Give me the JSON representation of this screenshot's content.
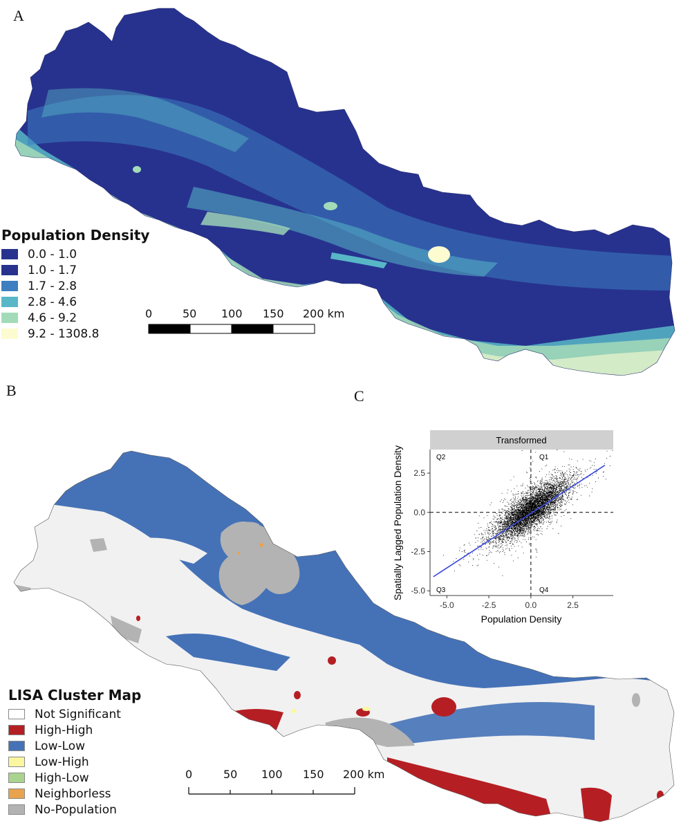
{
  "panels": {
    "a": {
      "letter": "A",
      "legend_title": "Population Density",
      "legend": [
        {
          "label": "0.0 - 1.0",
          "color": "#27328f"
        },
        {
          "label": "1.0 - 1.7",
          "color": "#27328f"
        },
        {
          "label": "1.7 - 2.8",
          "color": "#3d7fc1"
        },
        {
          "label": "2.8 - 4.6",
          "color": "#58b7c6"
        },
        {
          "label": "4.6 - 9.2",
          "color": "#a3dbb8"
        },
        {
          "label": "9.2 - 1308.8",
          "color": "#fdfcd0"
        }
      ],
      "scale_ticks": [
        "0",
        "50",
        "100",
        "150",
        "200 km"
      ]
    },
    "b": {
      "letter": "B",
      "legend_title": "LISA Cluster Map",
      "legend": [
        {
          "label": "Not Significant",
          "color": "#ffffff"
        },
        {
          "label": "High-High",
          "color": "#b51f24"
        },
        {
          "label": "Low-Low",
          "color": "#4572b7"
        },
        {
          "label": "Low-High",
          "color": "#fbf7a1"
        },
        {
          "label": "High-Low",
          "color": "#a9d48f"
        },
        {
          "label": "Neighborless",
          "color": "#e8a34f"
        },
        {
          "label": "No-Population",
          "color": "#b3b3b3"
        }
      ],
      "scale_ticks": [
        "0",
        "50",
        "100",
        "150",
        "200 km"
      ]
    },
    "c": {
      "letter": "C",
      "facet_label": "Transformed",
      "quadrants": [
        "Q1",
        "Q2",
        "Q3",
        "Q4"
      ]
    }
  },
  "chart_data": {
    "type": "scatter",
    "title": "",
    "facet": "Transformed",
    "xlabel": "Population Density",
    "ylabel": "Spatially Lagged Population Density",
    "xlim": [
      -6.0,
      4.9
    ],
    "ylim": [
      -5.3,
      4.0
    ],
    "xticks": [
      -5.0,
      -2.5,
      0.0,
      2.5
    ],
    "yticks": [
      -5.0,
      -2.5,
      0.0,
      2.5
    ],
    "xtick_labels": [
      "-5.0",
      "-2.5",
      "0.0",
      "2.5"
    ],
    "ytick_labels": [
      "-5.0",
      "-2.5",
      "0.0",
      "2.5"
    ],
    "reference_lines": {
      "x": 0.0,
      "y": 0.0,
      "style": "dashed"
    },
    "fit_line": {
      "x": [
        -5.8,
        4.4
      ],
      "y": [
        -4.1,
        3.0
      ],
      "color": "#3b49e0"
    },
    "point_cloud": {
      "center": [
        0.0,
        0.15
      ],
      "x_sd": 1.05,
      "slope": 0.7,
      "residual_sd": 0.55,
      "n": 12000,
      "color": "#000000"
    },
    "grid": false,
    "legend": "none"
  }
}
